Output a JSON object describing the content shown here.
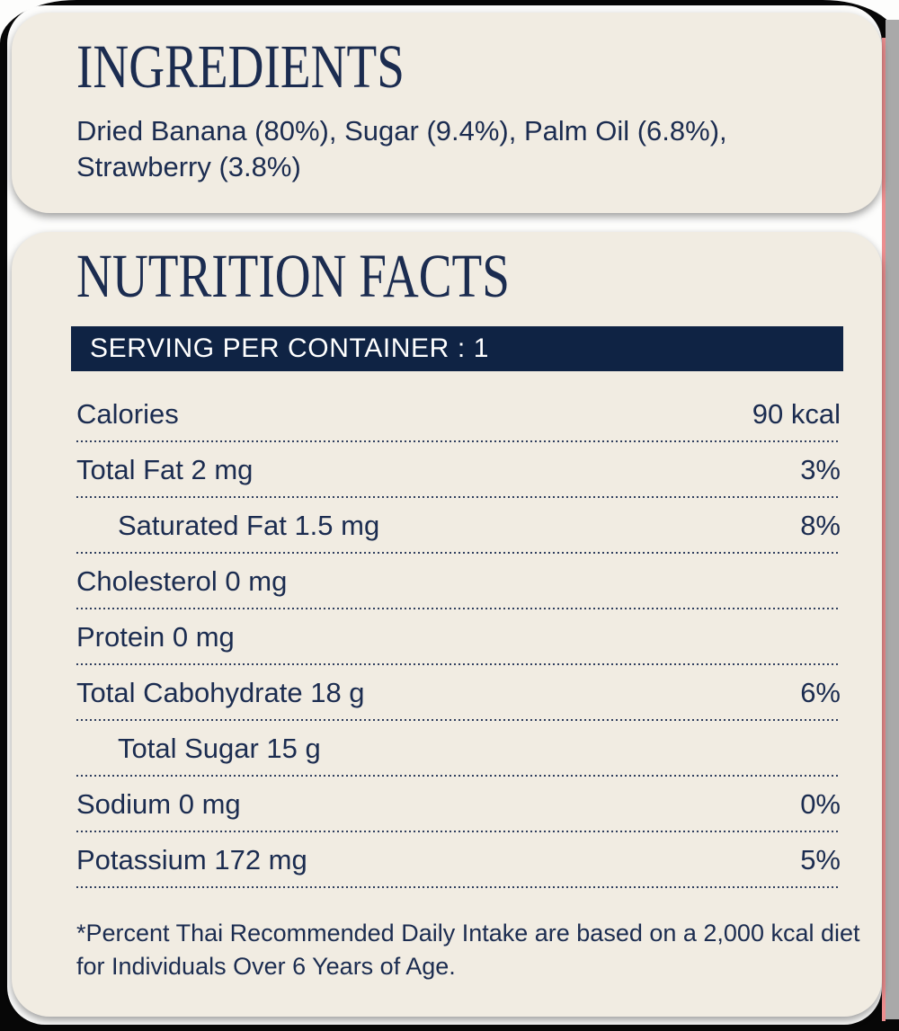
{
  "colors": {
    "navy": "#1b2c50",
    "bar_navy": "#0f2344",
    "cream": "#f1ece2",
    "white": "#fdfdfc",
    "pink": "#ec8e8f",
    "gray": "#a9a9a9",
    "black": "#070707"
  },
  "ingredients_card": {
    "title": "INGREDIENTS",
    "text": "Dried Banana (80%), Sugar (9.4%), Palm Oil (6.8%),\nStrawberry (3.8%)"
  },
  "nutrition_card": {
    "title": "NUTRITION FACTS",
    "serving_label": "SERVING PER CONTAINER : 1",
    "rows": [
      {
        "label": "Calories",
        "value": "90 kcal",
        "indent": false
      },
      {
        "label": "Total Fat 2 mg",
        "value": "3%",
        "indent": false
      },
      {
        "label": "Saturated Fat 1.5 mg",
        "value": "8%",
        "indent": true
      },
      {
        "label": "Cholesterol 0 mg",
        "value": "",
        "indent": false
      },
      {
        "label": "Protein 0 mg",
        "value": "",
        "indent": false
      },
      {
        "label": "Total Cabohydrate 18 g",
        "value": "6%",
        "indent": false
      },
      {
        "label": "Total Sugar 15 g",
        "value": "",
        "indent": true
      },
      {
        "label": "Sodium 0 mg",
        "value": "0%",
        "indent": false
      },
      {
        "label": "Potassium 172 mg",
        "value": "5%",
        "indent": false
      }
    ],
    "footnote": "*Percent Thai Recommended Daily Intake are based on a 2,000 kcal diet\nfor Individuals Over 6 Years of Age."
  }
}
